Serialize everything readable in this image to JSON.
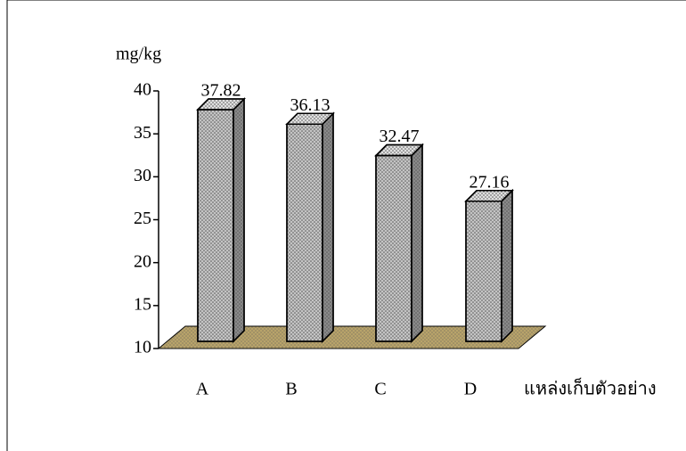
{
  "chart_data": {
    "type": "bar3d",
    "y_label": "mg/kg",
    "x_label": "แหล่งเก็บตัวอย่าง",
    "categories": [
      "A",
      "B",
      "C",
      "D"
    ],
    "values": [
      37.82,
      36.13,
      32.47,
      27.16
    ],
    "color": "#c4c4c4",
    "floor_color": "#b8a36a",
    "ylim": [
      10,
      40
    ],
    "yticks": [
      10,
      15,
      20,
      25,
      30,
      35,
      40
    ]
  }
}
